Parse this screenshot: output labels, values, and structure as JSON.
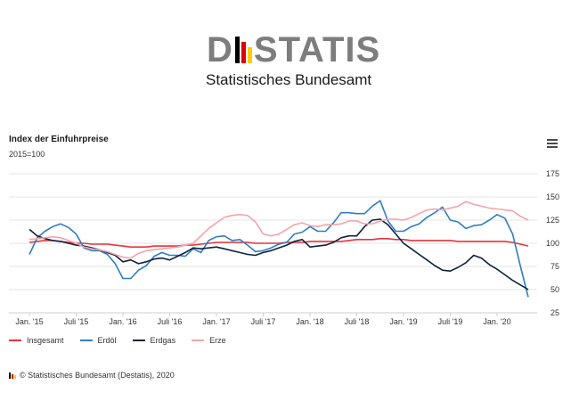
{
  "logo": {
    "word_left": "D",
    "word_right": "STATIS",
    "subtitle": "Statistisches Bundesamt",
    "flag_colors": [
      "#000000",
      "#dd0000",
      "#ffcc00"
    ]
  },
  "menu_icon": "hamburger-icon",
  "credit": {
    "text": "© Statistisches Bundesamt (Destatis), 2020"
  },
  "chart_data": {
    "type": "line",
    "title": "Index der Einfuhrpreise",
    "subtitle": "2015=100",
    "xlabel": "",
    "ylabel": "",
    "ylim": [
      25,
      175
    ],
    "yticks": [
      25,
      50,
      75,
      100,
      125,
      150,
      175
    ],
    "grid": true,
    "legend_position": "bottom-left",
    "x_tick_labels": [
      {
        "label": "Jan. '15",
        "month_index": 0
      },
      {
        "label": "Juli '15",
        "month_index": 6
      },
      {
        "label": "Jan. '16",
        "month_index": 12
      },
      {
        "label": "Juli '16",
        "month_index": 18
      },
      {
        "label": "Jan. '17",
        "month_index": 24
      },
      {
        "label": "Juli '17",
        "month_index": 30
      },
      {
        "label": "Jan. '18",
        "month_index": 36
      },
      {
        "label": "Juli '18",
        "month_index": 42
      },
      {
        "label": "Jan. '19",
        "month_index": 48
      },
      {
        "label": "Juli '19",
        "month_index": 54
      },
      {
        "label": "Jan. '20",
        "month_index": 60
      }
    ],
    "series": [
      {
        "name": "Insgesamt",
        "color": "#e8333b",
        "values": [
          101,
          102,
          103,
          103,
          102,
          101,
          100,
          100,
          99,
          99,
          99,
          98,
          97,
          96,
          96,
          96,
          97,
          97,
          97,
          97,
          98,
          98,
          99,
          100,
          101,
          101,
          101,
          101,
          101,
          100,
          100,
          100,
          100,
          101,
          101,
          101,
          102,
          102,
          102,
          102,
          102,
          103,
          104,
          104,
          104,
          105,
          105,
          104,
          104,
          103,
          103,
          103,
          103,
          103,
          103,
          102,
          102,
          102,
          102,
          102,
          102,
          102,
          101,
          99,
          97
        ]
      },
      {
        "name": "Erdöl",
        "color": "#2f7ec1",
        "values": [
          88,
          106,
          113,
          118,
          121,
          117,
          110,
          95,
          92,
          92,
          88,
          78,
          62,
          62,
          71,
          76,
          86,
          90,
          87,
          87,
          86,
          94,
          90,
          103,
          107,
          108,
          103,
          104,
          98,
          91,
          92,
          95,
          99,
          101,
          110,
          112,
          118,
          113,
          113,
          122,
          133,
          133,
          132,
          132,
          140,
          146,
          124,
          113,
          113,
          118,
          121,
          128,
          133,
          139,
          125,
          123,
          116,
          119,
          120,
          125,
          131,
          127,
          110,
          75,
          42
        ]
      },
      {
        "name": "Erdgas",
        "color": "#0d2240",
        "values": [
          115,
          108,
          105,
          103,
          102,
          100,
          98,
          97,
          95,
          93,
          90,
          87,
          80,
          82,
          78,
          80,
          83,
          84,
          82,
          86,
          90,
          95,
          94,
          95,
          96,
          94,
          92,
          90,
          88,
          87,
          90,
          92,
          95,
          98,
          102,
          104,
          96,
          97,
          98,
          101,
          106,
          108,
          108,
          118,
          125,
          126,
          120,
          110,
          100,
          94,
          88,
          82,
          76,
          71,
          70,
          74,
          79,
          87,
          84,
          77,
          72,
          66,
          60,
          55,
          50
        ]
      },
      {
        "name": "Erze",
        "color": "#f5a3a8",
        "values": [
          104,
          105,
          106,
          107,
          106,
          103,
          100,
          96,
          94,
          93,
          91,
          88,
          85,
          84,
          89,
          92,
          93,
          94,
          95,
          96,
          98,
          100,
          108,
          116,
          122,
          128,
          130,
          131,
          130,
          123,
          110,
          108,
          110,
          115,
          120,
          122,
          119,
          118,
          120,
          120,
          121,
          124,
          124,
          121,
          121,
          124,
          126,
          126,
          125,
          128,
          132,
          136,
          137,
          136,
          138,
          140,
          145,
          142,
          140,
          138,
          137,
          136,
          135,
          129,
          125
        ]
      }
    ]
  }
}
